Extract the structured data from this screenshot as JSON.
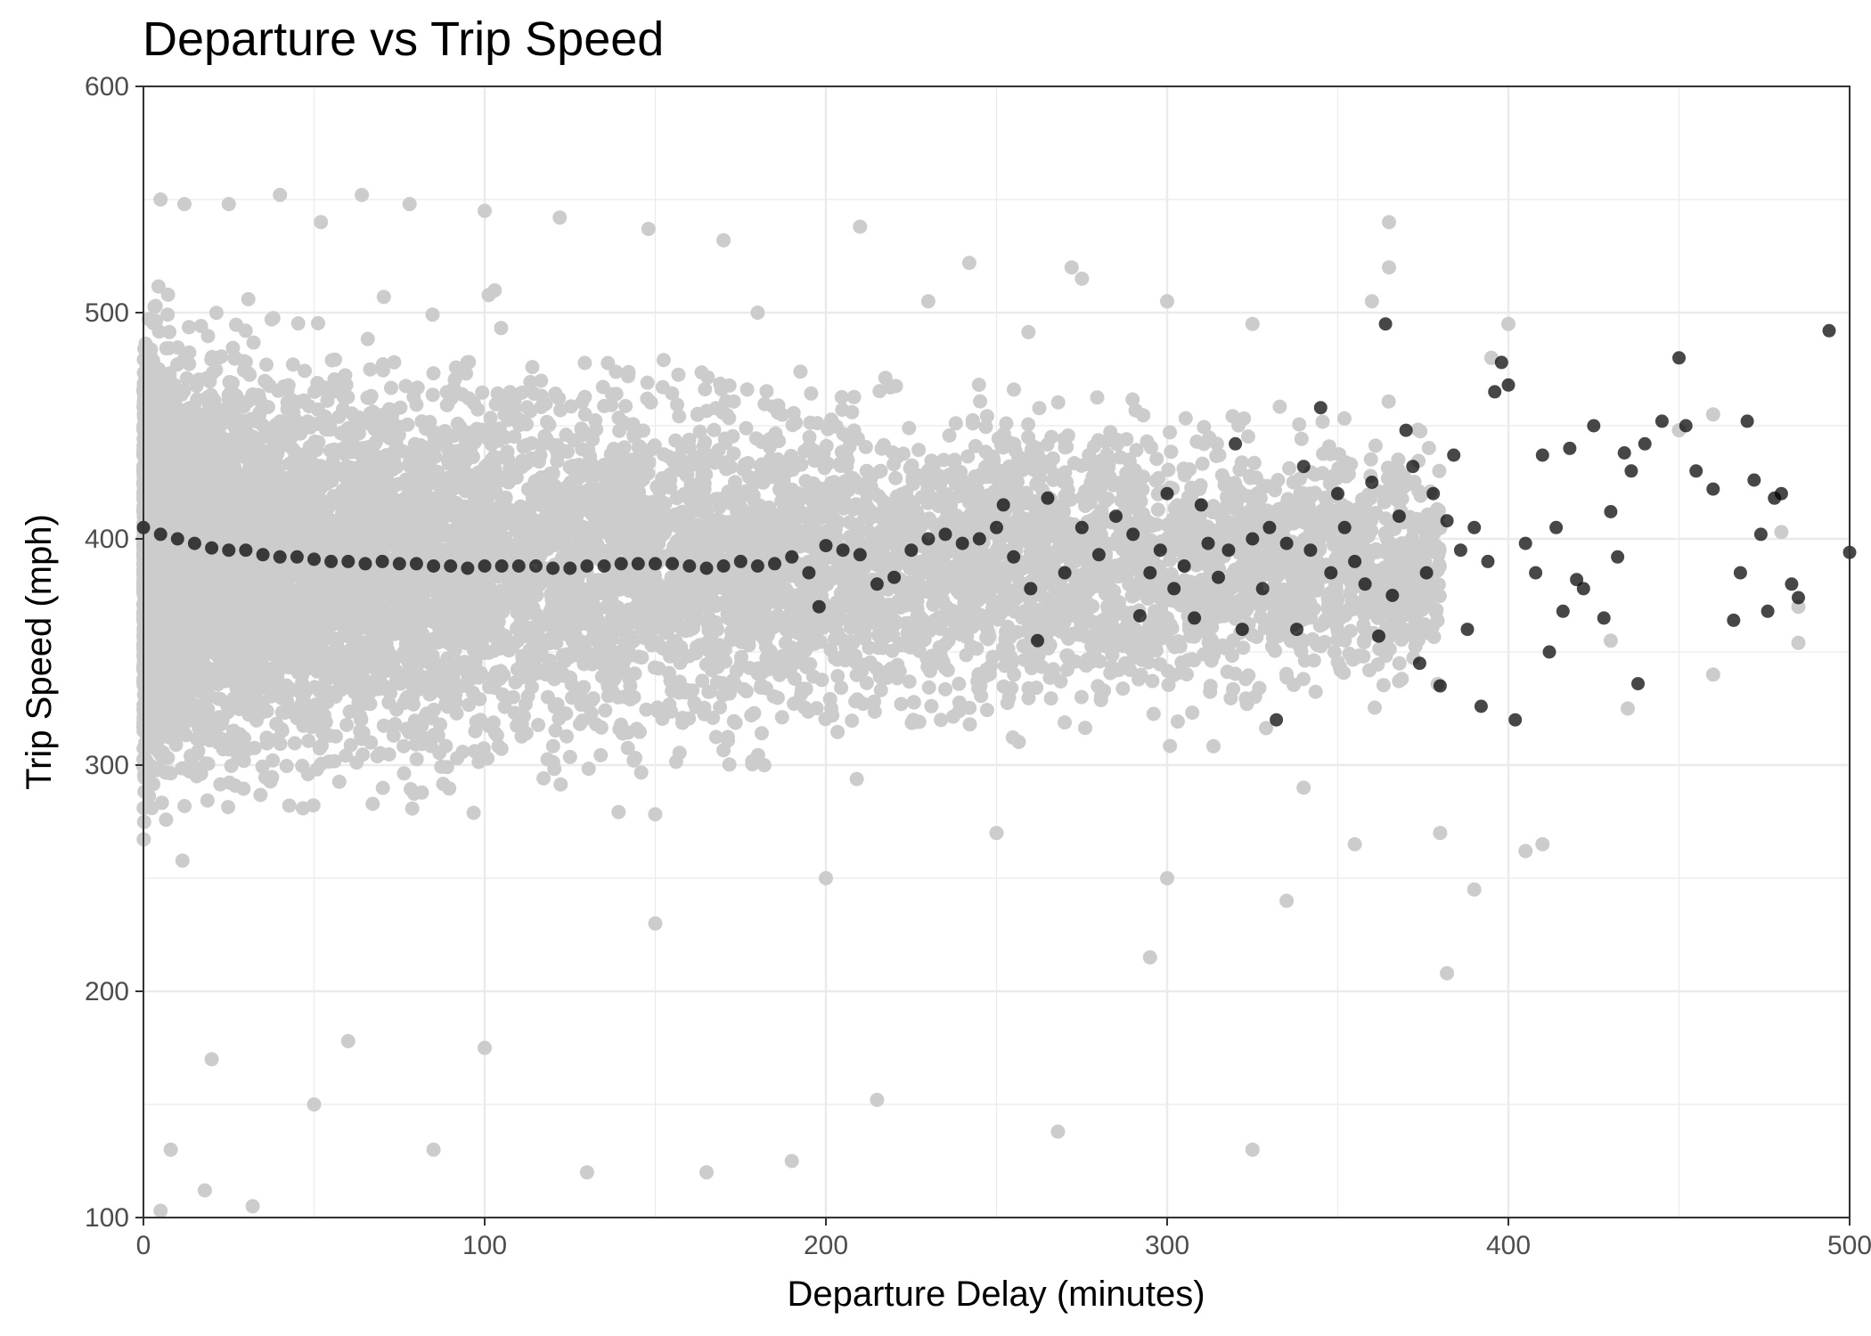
{
  "chart_data": {
    "type": "scatter",
    "title": "Departure vs Trip Speed",
    "xlabel": "Departure Delay (minutes)",
    "ylabel": "Trip Speed (mph)",
    "xlim": [
      0,
      500
    ],
    "ylim": [
      100,
      600
    ],
    "x_ticks": [
      0,
      100,
      200,
      300,
      400,
      500
    ],
    "y_ticks": [
      100,
      200,
      300,
      400,
      500,
      600
    ],
    "x_tick_labels": [
      "0",
      "100",
      "200",
      "300",
      "400",
      "500"
    ],
    "y_tick_labels": [
      "100",
      "200",
      "300",
      "400",
      "500",
      "600"
    ],
    "grid": true,
    "legend": "none",
    "colors": {
      "raw_points": "#cccccc",
      "mean_points": "#000000",
      "grid": "#ebebeb",
      "panel_border": "#333333"
    },
    "series": [
      {
        "role": "individual flights",
        "color": "#cccccc",
        "note": "dense cloud; representative sample of visible points",
        "points": [
          [
            5,
            550
          ],
          [
            12,
            548
          ],
          [
            25,
            548
          ],
          [
            40,
            552
          ],
          [
            52,
            540
          ],
          [
            64,
            552
          ],
          [
            78,
            548
          ],
          [
            100,
            545
          ],
          [
            122,
            542
          ],
          [
            148,
            537
          ],
          [
            170,
            532
          ],
          [
            210,
            538
          ],
          [
            242,
            522
          ],
          [
            272,
            520
          ],
          [
            300,
            505
          ],
          [
            325,
            495
          ],
          [
            365,
            540
          ],
          [
            360,
            505
          ],
          [
            400,
            495
          ],
          [
            450,
            448
          ],
          [
            480,
            403
          ],
          [
            485,
            370
          ],
          [
            485,
            354
          ],
          [
            460,
            340
          ],
          [
            382,
            208
          ],
          [
            380,
            270
          ],
          [
            355,
            265
          ],
          [
            335,
            240
          ],
          [
            325,
            130
          ],
          [
            268,
            138
          ],
          [
            215,
            152
          ],
          [
            190,
            125
          ],
          [
            165,
            120
          ],
          [
            130,
            120
          ],
          [
            85,
            130
          ],
          [
            50,
            150
          ],
          [
            32,
            105
          ],
          [
            18,
            112
          ],
          [
            5,
            103
          ],
          [
            8,
            130
          ],
          [
            20,
            170
          ],
          [
            60,
            178
          ],
          [
            100,
            175
          ],
          [
            150,
            230
          ],
          [
            200,
            250
          ],
          [
            250,
            270
          ],
          [
            300,
            250
          ],
          [
            295,
            215
          ],
          [
            410,
            265
          ],
          [
            405,
            262
          ],
          [
            435,
            325
          ],
          [
            390,
            245
          ],
          [
            340,
            290
          ],
          [
            430,
            355
          ],
          [
            460,
            455
          ],
          [
            395,
            480
          ],
          [
            365,
            520
          ],
          [
            275,
            515
          ],
          [
            230,
            505
          ],
          [
            180,
            500
          ]
        ]
      },
      {
        "role": "mean per delay",
        "color": "#000000",
        "points": [
          [
            0,
            405
          ],
          [
            5,
            402
          ],
          [
            10,
            400
          ],
          [
            15,
            398
          ],
          [
            20,
            396
          ],
          [
            25,
            395
          ],
          [
            30,
            395
          ],
          [
            35,
            393
          ],
          [
            40,
            392
          ],
          [
            45,
            392
          ],
          [
            50,
            391
          ],
          [
            55,
            390
          ],
          [
            60,
            390
          ],
          [
            65,
            389
          ],
          [
            70,
            390
          ],
          [
            75,
            389
          ],
          [
            80,
            389
          ],
          [
            85,
            388
          ],
          [
            90,
            388
          ],
          [
            95,
            387
          ],
          [
            100,
            388
          ],
          [
            105,
            388
          ],
          [
            110,
            388
          ],
          [
            115,
            388
          ],
          [
            120,
            387
          ],
          [
            125,
            387
          ],
          [
            130,
            388
          ],
          [
            135,
            388
          ],
          [
            140,
            389
          ],
          [
            145,
            389
          ],
          [
            150,
            389
          ],
          [
            155,
            389
          ],
          [
            160,
            388
          ],
          [
            165,
            387
          ],
          [
            170,
            388
          ],
          [
            175,
            390
          ],
          [
            180,
            388
          ],
          [
            185,
            389
          ],
          [
            190,
            392
          ],
          [
            195,
            385
          ],
          [
            198,
            370
          ],
          [
            200,
            397
          ],
          [
            205,
            395
          ],
          [
            210,
            393
          ],
          [
            215,
            380
          ],
          [
            220,
            383
          ],
          [
            225,
            395
          ],
          [
            230,
            400
          ],
          [
            235,
            402
          ],
          [
            240,
            398
          ],
          [
            245,
            400
          ],
          [
            250,
            405
          ],
          [
            252,
            415
          ],
          [
            255,
            392
          ],
          [
            260,
            378
          ],
          [
            262,
            355
          ],
          [
            265,
            418
          ],
          [
            270,
            385
          ],
          [
            275,
            405
          ],
          [
            280,
            393
          ],
          [
            285,
            410
          ],
          [
            290,
            402
          ],
          [
            292,
            366
          ],
          [
            295,
            385
          ],
          [
            298,
            395
          ],
          [
            300,
            420
          ],
          [
            302,
            378
          ],
          [
            305,
            388
          ],
          [
            308,
            365
          ],
          [
            310,
            415
          ],
          [
            312,
            398
          ],
          [
            315,
            383
          ],
          [
            318,
            395
          ],
          [
            320,
            442
          ],
          [
            322,
            360
          ],
          [
            325,
            400
          ],
          [
            328,
            378
          ],
          [
            330,
            405
          ],
          [
            332,
            320
          ],
          [
            335,
            398
          ],
          [
            338,
            360
          ],
          [
            340,
            432
          ],
          [
            342,
            395
          ],
          [
            345,
            458
          ],
          [
            348,
            385
          ],
          [
            350,
            420
          ],
          [
            352,
            405
          ],
          [
            355,
            390
          ],
          [
            358,
            380
          ],
          [
            360,
            425
          ],
          [
            362,
            357
          ],
          [
            364,
            495
          ],
          [
            366,
            375
          ],
          [
            368,
            410
          ],
          [
            370,
            448
          ],
          [
            372,
            432
          ],
          [
            374,
            345
          ],
          [
            376,
            385
          ],
          [
            378,
            420
          ],
          [
            380,
            335
          ],
          [
            382,
            408
          ],
          [
            384,
            437
          ],
          [
            386,
            395
          ],
          [
            388,
            360
          ],
          [
            390,
            405
          ],
          [
            392,
            326
          ],
          [
            394,
            390
          ],
          [
            396,
            465
          ],
          [
            398,
            478
          ],
          [
            400,
            468
          ],
          [
            402,
            320
          ],
          [
            405,
            398
          ],
          [
            408,
            385
          ],
          [
            410,
            437
          ],
          [
            412,
            350
          ],
          [
            414,
            405
          ],
          [
            416,
            368
          ],
          [
            418,
            440
          ],
          [
            420,
            382
          ],
          [
            422,
            378
          ],
          [
            425,
            450
          ],
          [
            428,
            365
          ],
          [
            430,
            412
          ],
          [
            432,
            392
          ],
          [
            434,
            438
          ],
          [
            436,
            430
          ],
          [
            438,
            336
          ],
          [
            440,
            442
          ],
          [
            445,
            452
          ],
          [
            450,
            480
          ],
          [
            452,
            450
          ],
          [
            455,
            430
          ],
          [
            460,
            422
          ],
          [
            466,
            364
          ],
          [
            468,
            385
          ],
          [
            470,
            452
          ],
          [
            472,
            426
          ],
          [
            474,
            402
          ],
          [
            476,
            368
          ],
          [
            478,
            418
          ],
          [
            480,
            420
          ],
          [
            483,
            380
          ],
          [
            485,
            374
          ],
          [
            494,
            492
          ],
          [
            500,
            394
          ]
        ]
      }
    ]
  }
}
